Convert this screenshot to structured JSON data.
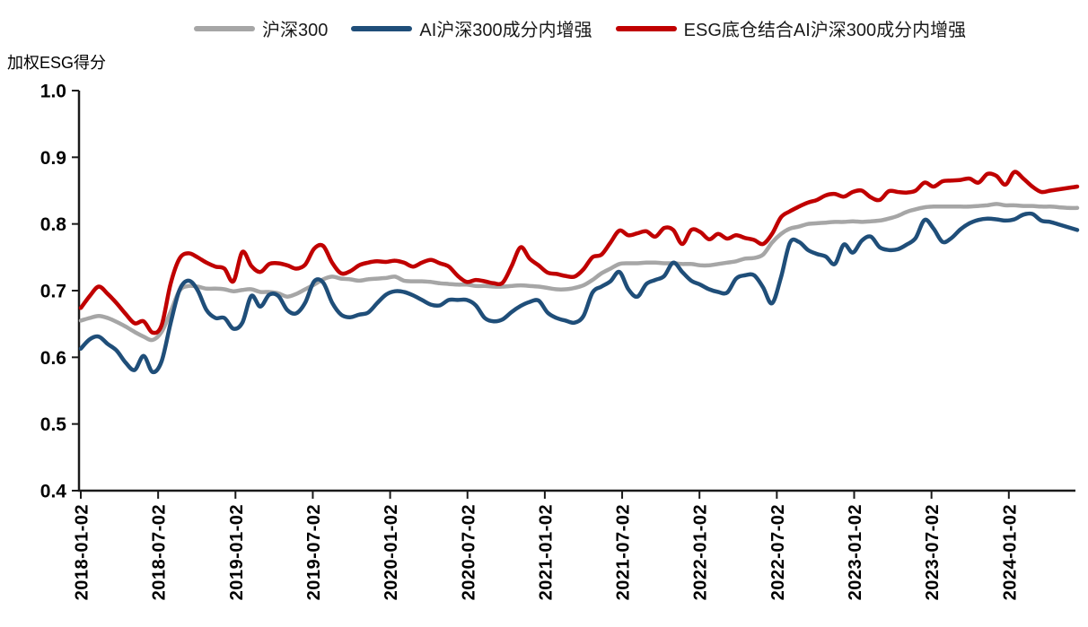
{
  "page": {
    "background": "#ffffff"
  },
  "legend": {
    "items": [
      {
        "label": "沪深300",
        "color": "#A6A6A6"
      },
      {
        "label": "AI沪深300成分内增强",
        "color": "#1F4E79"
      },
      {
        "label": "ESG底仓结合AI沪深300成分内增强",
        "color": "#C00000"
      }
    ]
  },
  "chart_data": {
    "type": "line",
    "title": "",
    "ylabel": "加权ESG得分",
    "xlabel": "",
    "ylim": [
      0.4,
      1.0
    ],
    "y_ticks": [
      "1.0",
      "0.9",
      "0.8",
      "0.7",
      "0.6",
      "0.5",
      "0.4"
    ],
    "y_tick_values": [
      1.0,
      0.9,
      0.8,
      0.7,
      0.6,
      0.5,
      0.4
    ],
    "x_tick_labels": [
      "2018-01-02",
      "2018-07-02",
      "2019-01-02",
      "2019-07-02",
      "2020-01-02",
      "2020-07-02",
      "2021-01-02",
      "2021-07-02",
      "2022-01-02",
      "2022-07-02",
      "2023-01-02",
      "2023-07-02",
      "2024-01-02"
    ],
    "grid": false,
    "legend_position": "top",
    "axis_color": "#1a1a1a",
    "text_color": "#000000",
    "series": [
      {
        "name": "沪深300",
        "color": "#A6A6A6",
        "stroke_width": 4.5,
        "values": [
          0.655,
          0.659,
          0.662,
          0.659,
          0.653,
          0.646,
          0.638,
          0.631,
          0.626,
          0.638,
          0.668,
          0.7,
          0.707,
          0.706,
          0.703,
          0.703,
          0.702,
          0.699,
          0.701,
          0.702,
          0.698,
          0.698,
          0.696,
          0.691,
          0.695,
          0.702,
          0.709,
          0.717,
          0.721,
          0.718,
          0.717,
          0.715,
          0.717,
          0.718,
          0.719,
          0.721,
          0.715,
          0.714,
          0.714,
          0.713,
          0.711,
          0.71,
          0.709,
          0.709,
          0.707,
          0.707,
          0.706,
          0.706,
          0.707,
          0.708,
          0.707,
          0.706,
          0.704,
          0.702,
          0.702,
          0.704,
          0.708,
          0.716,
          0.726,
          0.733,
          0.74,
          0.741,
          0.741,
          0.742,
          0.742,
          0.741,
          0.741,
          0.74,
          0.74,
          0.738,
          0.738,
          0.74,
          0.742,
          0.744,
          0.748,
          0.749,
          0.754,
          0.772,
          0.785,
          0.793,
          0.796,
          0.8,
          0.801,
          0.802,
          0.803,
          0.803,
          0.804,
          0.803,
          0.804,
          0.805,
          0.808,
          0.812,
          0.818,
          0.822,
          0.825,
          0.826,
          0.826,
          0.826,
          0.826,
          0.826,
          0.827,
          0.828,
          0.83,
          0.828,
          0.828,
          0.827,
          0.827,
          0.826,
          0.826,
          0.825,
          0.824,
          0.824
        ]
      },
      {
        "name": "AI沪深300成分内增强",
        "color": "#1F4E79",
        "stroke_width": 4.5,
        "values": [
          0.613,
          0.627,
          0.631,
          0.62,
          0.61,
          0.592,
          0.581,
          0.602,
          0.578,
          0.594,
          0.651,
          0.701,
          0.715,
          0.701,
          0.671,
          0.659,
          0.659,
          0.643,
          0.652,
          0.692,
          0.676,
          0.694,
          0.692,
          0.671,
          0.666,
          0.682,
          0.714,
          0.712,
          0.682,
          0.664,
          0.66,
          0.664,
          0.667,
          0.681,
          0.694,
          0.699,
          0.698,
          0.693,
          0.686,
          0.679,
          0.678,
          0.686,
          0.686,
          0.686,
          0.678,
          0.659,
          0.654,
          0.657,
          0.668,
          0.677,
          0.683,
          0.685,
          0.667,
          0.659,
          0.655,
          0.652,
          0.662,
          0.697,
          0.706,
          0.714,
          0.728,
          0.702,
          0.691,
          0.71,
          0.716,
          0.722,
          0.742,
          0.728,
          0.715,
          0.709,
          0.702,
          0.698,
          0.697,
          0.718,
          0.723,
          0.723,
          0.705,
          0.681,
          0.72,
          0.772,
          0.773,
          0.761,
          0.755,
          0.751,
          0.74,
          0.769,
          0.757,
          0.775,
          0.781,
          0.765,
          0.761,
          0.762,
          0.769,
          0.779,
          0.806,
          0.793,
          0.773,
          0.779,
          0.792,
          0.801,
          0.806,
          0.808,
          0.807,
          0.805,
          0.807,
          0.814,
          0.815,
          0.805,
          0.803,
          0.799,
          0.795,
          0.791
        ]
      },
      {
        "name": "ESG底仓结合AI沪深300成分内增强",
        "color": "#C00000",
        "stroke_width": 4.5,
        "values": [
          0.674,
          0.692,
          0.706,
          0.695,
          0.681,
          0.665,
          0.651,
          0.654,
          0.637,
          0.648,
          0.71,
          0.748,
          0.756,
          0.75,
          0.742,
          0.736,
          0.733,
          0.714,
          0.758,
          0.737,
          0.728,
          0.74,
          0.741,
          0.738,
          0.733,
          0.739,
          0.763,
          0.767,
          0.742,
          0.726,
          0.729,
          0.738,
          0.742,
          0.744,
          0.743,
          0.745,
          0.742,
          0.736,
          0.742,
          0.746,
          0.741,
          0.736,
          0.722,
          0.713,
          0.716,
          0.714,
          0.711,
          0.712,
          0.737,
          0.765,
          0.748,
          0.738,
          0.727,
          0.725,
          0.722,
          0.721,
          0.732,
          0.75,
          0.754,
          0.772,
          0.79,
          0.783,
          0.786,
          0.789,
          0.781,
          0.794,
          0.791,
          0.77,
          0.791,
          0.788,
          0.777,
          0.785,
          0.778,
          0.783,
          0.779,
          0.776,
          0.77,
          0.785,
          0.81,
          0.819,
          0.826,
          0.832,
          0.836,
          0.843,
          0.845,
          0.841,
          0.848,
          0.85,
          0.84,
          0.836,
          0.849,
          0.848,
          0.847,
          0.85,
          0.862,
          0.856,
          0.864,
          0.865,
          0.866,
          0.868,
          0.862,
          0.875,
          0.872,
          0.859,
          0.878,
          0.868,
          0.856,
          0.848,
          0.85,
          0.852,
          0.854,
          0.856
        ]
      }
    ]
  }
}
